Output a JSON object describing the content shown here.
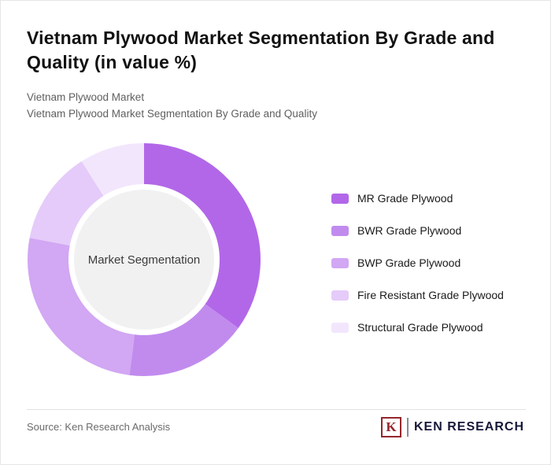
{
  "header": {
    "title": "Vietnam Plywood Market Segmentation By Grade and Quality (in value %)",
    "subtitle_line1": "Vietnam Plywood Market",
    "subtitle_line2": "Vietnam Plywood Market Segmentation By Grade and Quality"
  },
  "chart_data": {
    "type": "pie",
    "donut": true,
    "title": "Vietnam Plywood Market Segmentation By Grade and Quality (in value %)",
    "center_label": "Market Segmentation",
    "legend_position": "right",
    "start_angle_deg": 0,
    "segments": [
      {
        "label": "MR Grade Plywood",
        "value": 35,
        "color": "#b267e8"
      },
      {
        "label": "BWR Grade Plywood",
        "value": 17,
        "color": "#c18bee"
      },
      {
        "label": "BWP Grade Plywood",
        "value": 26,
        "color": "#d2a7f3"
      },
      {
        "label": "Fire Resistant Grade Plywood",
        "value": 13,
        "color": "#e5cbf9"
      },
      {
        "label": "Structural Grade Plywood",
        "value": 9,
        "color": "#f2e6fd"
      }
    ],
    "center_hole_color": "#f1f1f1"
  },
  "footer": {
    "source": "Source: Ken Research Analysis",
    "logo": {
      "icon_letter": "K",
      "text": "KEN RESEARCH"
    }
  }
}
